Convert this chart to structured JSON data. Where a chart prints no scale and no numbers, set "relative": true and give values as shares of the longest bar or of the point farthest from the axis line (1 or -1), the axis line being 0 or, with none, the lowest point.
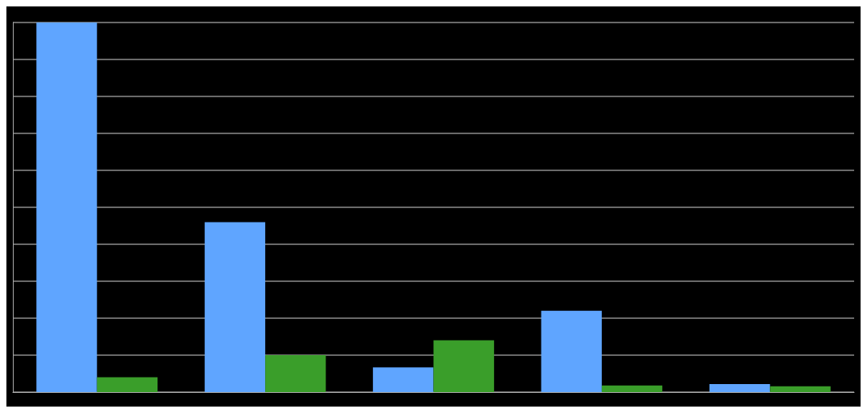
{
  "chart_data": {
    "type": "bar",
    "relative": true,
    "categories": [
      null,
      null,
      null,
      null,
      null
    ],
    "series": [
      {
        "color": "#5fa5ff",
        "values": [
          1,
          0.46,
          0.067,
          0.22,
          0.022
        ]
      },
      {
        "color": "#3a9e2a",
        "values": [
          0.04,
          0.1,
          0.14,
          0.018,
          0.016
        ]
      }
    ],
    "grid": true
  }
}
